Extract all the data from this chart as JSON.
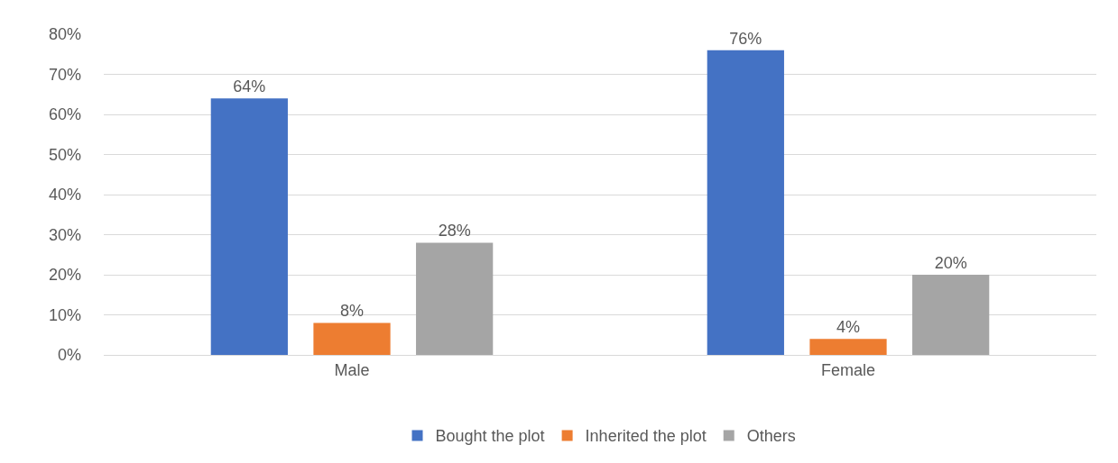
{
  "chart_data": {
    "type": "bar",
    "categories": [
      "Male",
      "Female"
    ],
    "series": [
      {
        "name": "Bought the plot",
        "color": "#4472c4",
        "values": [
          64,
          76
        ],
        "value_labels": [
          "64%",
          "76%"
        ]
      },
      {
        "name": "Inherited the plot",
        "color": "#ed7d31",
        "values": [
          8,
          4
        ],
        "value_labels": [
          "8%",
          "4%"
        ]
      },
      {
        "name": "Others",
        "color": "#a5a5a5",
        "values": [
          28,
          20
        ],
        "value_labels": [
          "28%",
          "20%"
        ]
      }
    ],
    "ylim": [
      0,
      80
    ],
    "yticks": [
      {
        "value": 0,
        "label": "0%"
      },
      {
        "value": 10,
        "label": "10%"
      },
      {
        "value": 20,
        "label": "20%"
      },
      {
        "value": 30,
        "label": "30%"
      },
      {
        "value": 40,
        "label": "40%"
      },
      {
        "value": 50,
        "label": "50%"
      },
      {
        "value": 60,
        "label": "60%"
      },
      {
        "value": 70,
        "label": "70%"
      },
      {
        "value": 80,
        "label": "80%"
      }
    ],
    "grid": "y",
    "legend": "bottom"
  }
}
